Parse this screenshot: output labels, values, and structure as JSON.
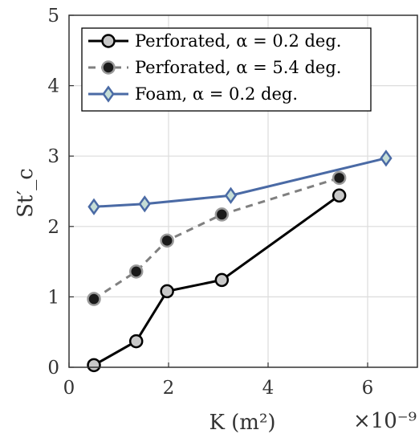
{
  "chart_data": {
    "type": "line",
    "title": "",
    "xlabel": "K (m²)",
    "ylabel": "St′_c",
    "x_multiplier": "×10⁻⁹",
    "xlim": [
      0,
      7
    ],
    "ylim": [
      0,
      5
    ],
    "xticks": [
      0,
      2,
      4,
      6
    ],
    "yticks": [
      0,
      1,
      2,
      3,
      4,
      5
    ],
    "grid": true,
    "legend_position": "top-left",
    "series": [
      {
        "name": "Perforated, α = 0.2 deg.",
        "line_color": "#000000",
        "line_style": "solid",
        "marker": "circle",
        "marker_fill": "#c8c8c8",
        "marker_edge": "#000000",
        "x": [
          0.5,
          1.35,
          1.97,
          3.07,
          5.43
        ],
        "y": [
          0.03,
          0.37,
          1.08,
          1.24,
          2.44
        ]
      },
      {
        "name": "Perforated, α = 5.4 deg.",
        "line_color": "#808080",
        "line_style": "dashed",
        "marker": "circle",
        "marker_fill": "#1a1a1a",
        "marker_edge": "#999999",
        "x": [
          0.5,
          1.35,
          1.97,
          3.07,
          5.43
        ],
        "y": [
          0.97,
          1.36,
          1.8,
          2.17,
          2.69
        ]
      },
      {
        "name": "Foam, α = 0.2 deg.",
        "line_color": "#4a6aa5",
        "line_style": "solid",
        "marker": "diamond",
        "marker_fill": "#c5ddd6",
        "marker_edge": "#4a6aa5",
        "x": [
          0.5,
          1.52,
          3.25,
          6.37
        ],
        "y": [
          2.28,
          2.32,
          2.44,
          2.97
        ]
      }
    ]
  }
}
